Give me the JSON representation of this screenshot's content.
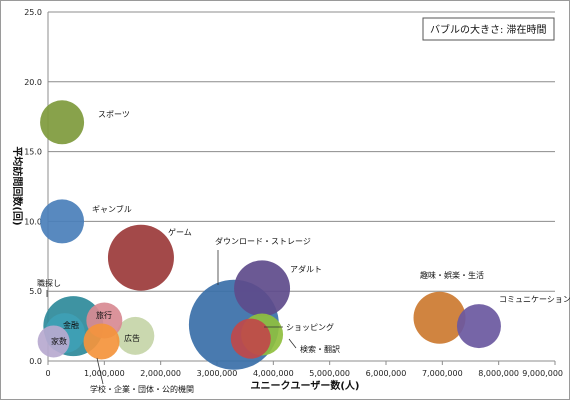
{
  "chart_data": {
    "type": "scatter",
    "variant": "bubble",
    "title": "",
    "legend_note": "バブルの大きさ: 滞在時間",
    "xlabel": "ユニークユーザー数(人)",
    "ylabel": "平均訪問回数(回)",
    "xlim": [
      0,
      9000000
    ],
    "ylim": [
      0,
      25
    ],
    "xticks": [
      0,
      1000000,
      2000000,
      3000000,
      4000000,
      5000000,
      6000000,
      7000000,
      8000000,
      9000000
    ],
    "xtick_labels": [
      "0",
      "1,000,000",
      "2,000,000",
      "3,000,000",
      "4,000,000",
      "5,000,000",
      "6,000,000",
      "7,000,000",
      "8,000,000",
      "9,000,000"
    ],
    "yticks": [
      0,
      5,
      10,
      15,
      20,
      25
    ],
    "ytick_labels": [
      "0.0",
      "5.0",
      "10.0",
      "15.0",
      "20.0",
      "25.0"
    ],
    "grid": "horizontal",
    "series": [
      {
        "name": "ダウンロード・ストレージ",
        "x": 3300000,
        "y": 2.6,
        "size": 45,
        "color": "#3a6fa8"
      },
      {
        "name": "スポーツ",
        "x": 250000,
        "y": 17.1,
        "size": 22,
        "color": "#7e9a3c"
      },
      {
        "name": "ギャンブル",
        "x": 250000,
        "y": 10.0,
        "size": 22,
        "color": "#4a7fba"
      },
      {
        "name": "ゲーム",
        "x": 1650000,
        "y": 7.4,
        "size": 33,
        "color": "#9b3a3a"
      },
      {
        "name": "アダルト",
        "x": 3800000,
        "y": 5.2,
        "size": 28,
        "color": "#5e4b8b"
      },
      {
        "name": "職探し",
        "x": 450000,
        "y": 2.5,
        "size": 30,
        "color": "#2e8a9a"
      },
      {
        "name": "金融",
        "x": 300000,
        "y": 2.0,
        "size": 20,
        "color": "#3e9fb5"
      },
      {
        "name": "旅行",
        "x": 1000000,
        "y": 2.9,
        "size": 18,
        "color": "#d88a93"
      },
      {
        "name": "広告",
        "x": 1550000,
        "y": 1.8,
        "size": 19,
        "color": "#c6d5a8"
      },
      {
        "name": "家数",
        "x": 100000,
        "y": 1.4,
        "size": 16,
        "color": "#b7a9cf"
      },
      {
        "name": "学校・企業・団体・公的機関",
        "x": 950000,
        "y": 1.4,
        "size": 18,
        "color": "#f4943c"
      },
      {
        "name": "検索・翻訳",
        "x": 3600000,
        "y": 1.6,
        "size": 20,
        "color": "#c0484a"
      },
      {
        "name": "ショッピング",
        "x": 3800000,
        "y": 1.9,
        "size": 21,
        "color": "#8fbf3e"
      },
      {
        "name": "趣味・娯楽・生活",
        "x": 6950000,
        "y": 3.1,
        "size": 26,
        "color": "#cc7a30"
      },
      {
        "name": "コミュニケーション",
        "x": 7650000,
        "y": 2.5,
        "size": 22,
        "color": "#6a58a0"
      }
    ]
  }
}
